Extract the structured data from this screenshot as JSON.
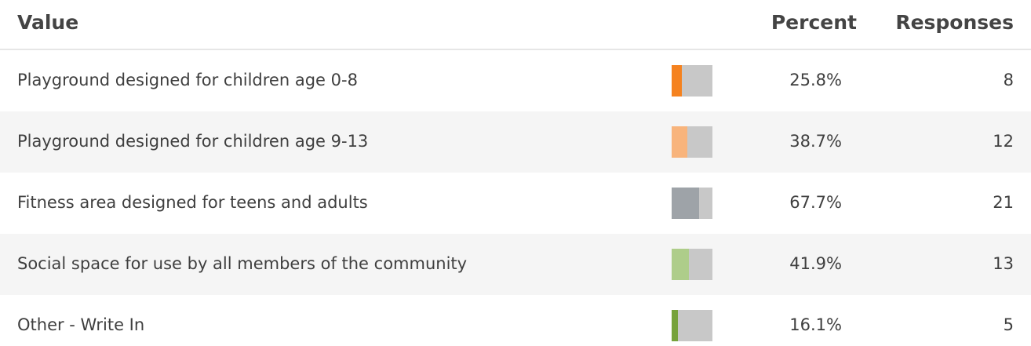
{
  "header": {
    "value": "Value",
    "percent": "Percent",
    "responses": "Responses"
  },
  "table": {
    "rows": [
      {
        "label": "Playground designed for children age 0-8",
        "percent": {
          "value": 25.8,
          "label": "25.8%"
        },
        "responses": 8,
        "color": "#f5821f"
      },
      {
        "label": "Playground designed for children age 9-13",
        "percent": {
          "value": 38.7,
          "label": "38.7%"
        },
        "responses": 12,
        "color": "#f8b47c"
      },
      {
        "label": "Fitness area designed for teens and adults",
        "percent": {
          "value": 67.7,
          "label": "67.7%"
        },
        "responses": 21,
        "color": "#9ea3a8"
      },
      {
        "label": "Social space for use by all members of the community",
        "percent": {
          "value": 41.9,
          "label": "41.9%"
        },
        "responses": 13,
        "color": "#aecd8a"
      },
      {
        "label": "Other - Write In",
        "percent": {
          "value": 16.1,
          "label": "16.1%"
        },
        "responses": 5,
        "color": "#77a23c"
      }
    ]
  }
}
